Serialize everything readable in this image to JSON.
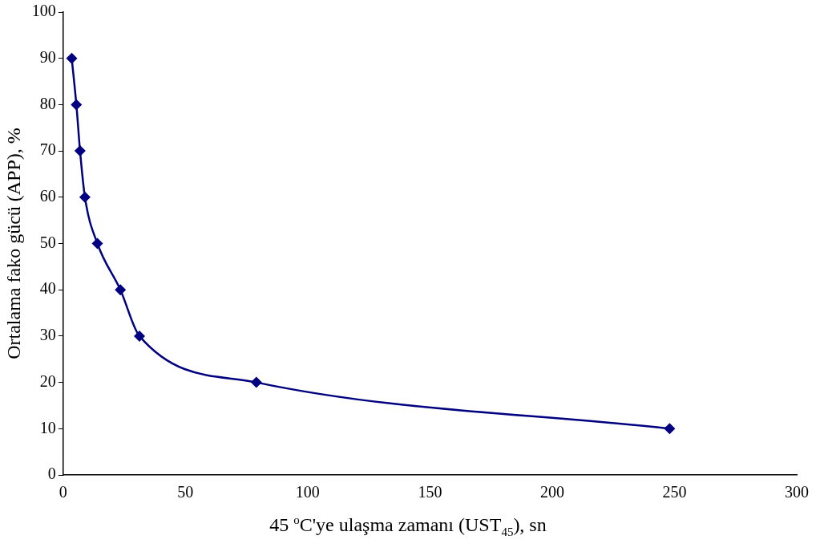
{
  "chart_data": {
    "type": "line",
    "xlabel": "45 $^{o}$C'ye ulaşma zamanı (UST$_{45}$), sn",
    "ylabel": "Ortalama fako gücü (APP), %",
    "x": [
      3.5,
      5.4,
      6.9,
      8.9,
      14.0,
      23.4,
      31.2,
      79.0,
      248
    ],
    "series": [
      {
        "color": "#000080",
        "values": [
          90,
          80,
          70,
          60,
          50,
          40,
          30,
          20,
          10
        ]
      }
    ],
    "xlim": [
      0,
      300
    ],
    "xticks": [
      0,
      50,
      100,
      150,
      200,
      250,
      300
    ],
    "ylim": [
      0,
      100
    ],
    "yticks": [
      0,
      10,
      20,
      30,
      40,
      50,
      60,
      70,
      80,
      90,
      100
    ],
    "grid": false,
    "legend": false,
    "marker": "diamond",
    "line_style": "solid"
  }
}
